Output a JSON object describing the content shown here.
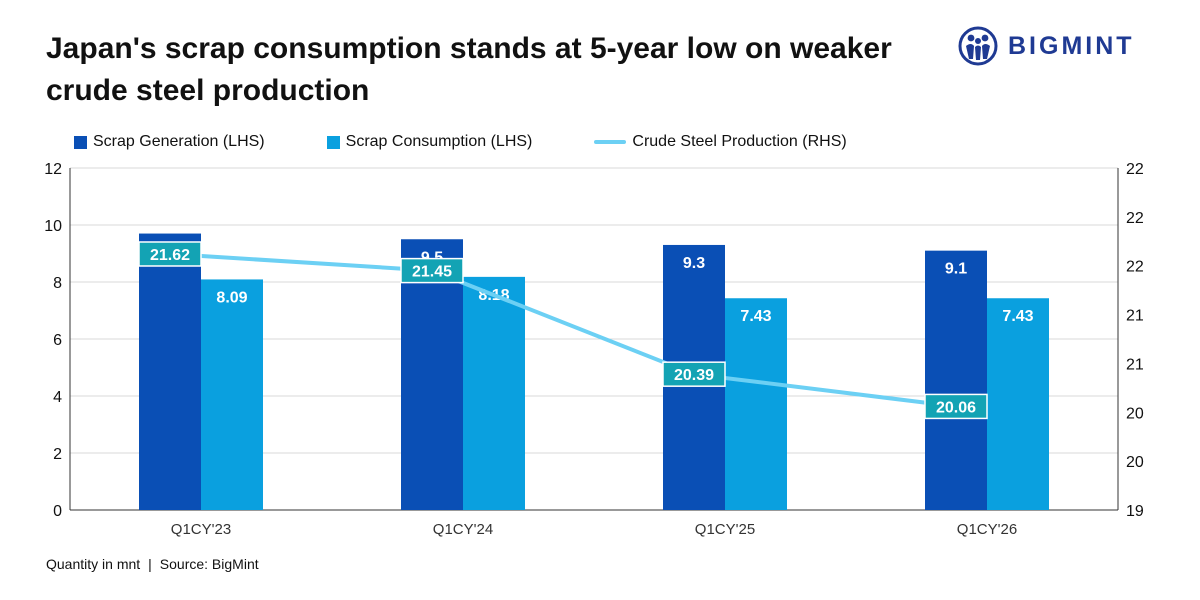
{
  "header": {
    "title": "Japan's scrap consumption stands at 5-year low on weaker crude steel production"
  },
  "brand": {
    "name": "BIGMINT",
    "icon": "people-emblem-icon",
    "color": "#1f3a93"
  },
  "footer": {
    "unit_note": "Quantity in mnt",
    "separator": "|",
    "source": "Source: BigMint"
  },
  "chart_data": {
    "type": "bar",
    "title": "Japan's scrap consumption stands at 5-year low on weaker crude steel production",
    "categories": [
      "Q1CY'23",
      "Q1CY'24",
      "Q1CY'25",
      "Q1CY'26"
    ],
    "series": [
      {
        "name": "Scrap Generation (LHS)",
        "type": "bar",
        "axis": "left",
        "color": "#0a4fb5",
        "values": [
          9.7,
          9.5,
          9.3,
          9.1
        ],
        "labels": [
          "9.7",
          "9.5",
          "9.3",
          "9.1"
        ]
      },
      {
        "name": "Scrap Consumption (LHS)",
        "type": "bar",
        "axis": "left",
        "color": "#0aa0df",
        "values": [
          8.09,
          8.18,
          7.43,
          7.43
        ],
        "labels": [
          "8.09",
          "8.18",
          "7.43",
          "7.43"
        ]
      },
      {
        "name": "Crude Steel Production (RHS)",
        "type": "line",
        "axis": "right",
        "color": "#6cd0f4",
        "label_bg": "#13a3b4",
        "values": [
          21.62,
          21.45,
          20.39,
          20.06
        ],
        "labels": [
          "21.62",
          "21.45",
          "20.39",
          "20.06"
        ]
      }
    ],
    "y_left": {
      "ylim": [
        0,
        12
      ],
      "ticks": [
        0,
        2,
        4,
        6,
        8,
        10,
        12
      ],
      "tick_labels": [
        "0",
        "2",
        "4",
        "6",
        "8",
        "10",
        "12"
      ]
    },
    "y_right": {
      "ylim": [
        19,
        22.5
      ],
      "ticks": [
        19,
        19.5,
        20,
        20.5,
        21,
        21.5,
        22,
        22.5
      ],
      "tick_labels": [
        "19",
        "20",
        "20",
        "21",
        "21",
        "22",
        "22",
        "22"
      ]
    },
    "grid": true,
    "legend": "top-left"
  }
}
